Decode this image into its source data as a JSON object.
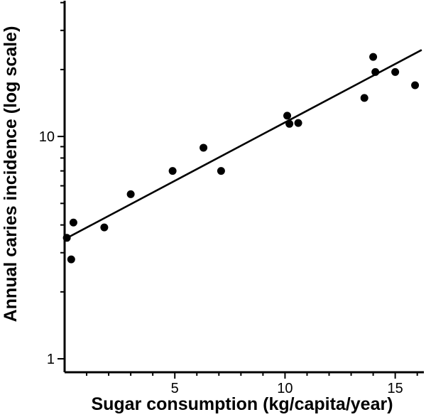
{
  "chart_data": {
    "type": "scatter",
    "xlabel": "Sugar consumption (kg/capita/year)",
    "ylabel": "Annual caries incidence (log scale)",
    "xlim": [
      0,
      16.3
    ],
    "ylim": [
      0.87,
      40.8
    ],
    "y_scale": "log",
    "grid": false,
    "x_ticks": [
      5,
      10,
      15
    ],
    "x_tick_labels": [
      "5",
      "10",
      "15"
    ],
    "x_minor_ticks": [
      1,
      2,
      3,
      4,
      6,
      7,
      8,
      9,
      11,
      12,
      13,
      14,
      16
    ],
    "y_ticks": [
      1,
      10
    ],
    "y_tick_labels": [
      "1",
      "10"
    ],
    "y_minor_ticks": [
      2,
      3,
      4,
      5,
      6,
      7,
      8,
      9,
      20,
      30,
      40
    ],
    "points": [
      {
        "x": 0.1,
        "y": 3.5
      },
      {
        "x": 0.3,
        "y": 2.8
      },
      {
        "x": 0.4,
        "y": 4.1
      },
      {
        "x": 1.8,
        "y": 3.9
      },
      {
        "x": 3.0,
        "y": 5.5
      },
      {
        "x": 4.9,
        "y": 7.0
      },
      {
        "x": 6.3,
        "y": 8.9
      },
      {
        "x": 7.1,
        "y": 7.0
      },
      {
        "x": 10.1,
        "y": 12.4
      },
      {
        "x": 10.2,
        "y": 11.4
      },
      {
        "x": 10.6,
        "y": 11.5
      },
      {
        "x": 13.6,
        "y": 14.9
      },
      {
        "x": 14.0,
        "y": 22.8
      },
      {
        "x": 14.1,
        "y": 19.5
      },
      {
        "x": 15.0,
        "y": 19.5
      },
      {
        "x": 15.9,
        "y": 17.0
      }
    ],
    "trendline": {
      "x": [
        0.0,
        16.2
      ],
      "y": [
        3.45,
        24.5
      ]
    }
  }
}
